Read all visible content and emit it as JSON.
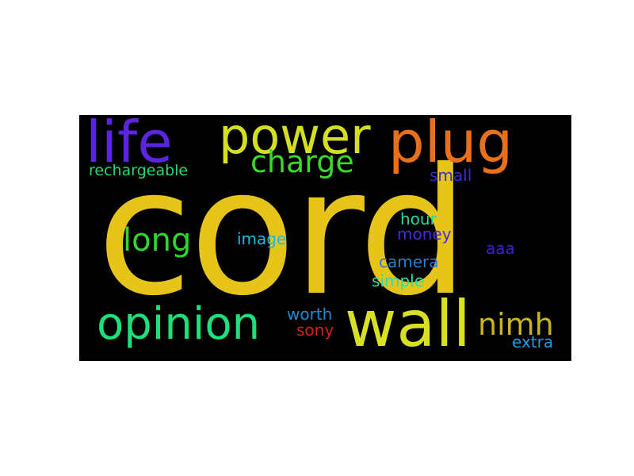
{
  "wordcloud": {
    "background": "#000000",
    "words": [
      {
        "text": "cord",
        "color": "#e6c41a"
      },
      {
        "text": "power",
        "color": "#d4df1f"
      },
      {
        "text": "life",
        "color": "#5b25e0"
      },
      {
        "text": "plug",
        "color": "#e8701a"
      },
      {
        "text": "charge",
        "color": "#3dd62a"
      },
      {
        "text": "rechargeable",
        "color": "#2ad66d"
      },
      {
        "text": "small",
        "color": "#3a2ad6"
      },
      {
        "text": "long",
        "color": "#2fd62f"
      },
      {
        "text": "image",
        "color": "#1fb8e0"
      },
      {
        "text": "hour",
        "color": "#2ad6a0"
      },
      {
        "text": "money",
        "color": "#4a2ad6"
      },
      {
        "text": "aaa",
        "color": "#3a1fd6"
      },
      {
        "text": "camera",
        "color": "#2a7ed6"
      },
      {
        "text": "simple",
        "color": "#2ae0a8"
      },
      {
        "text": "opinion",
        "color": "#1ee07a"
      },
      {
        "text": "wall",
        "color": "#d9e022"
      },
      {
        "text": "nimh",
        "color": "#c8b41c"
      },
      {
        "text": "worth",
        "color": "#1f8ad6"
      },
      {
        "text": "sony",
        "color": "#d62020"
      },
      {
        "text": "extra",
        "color": "#1f9ee0"
      }
    ]
  }
}
